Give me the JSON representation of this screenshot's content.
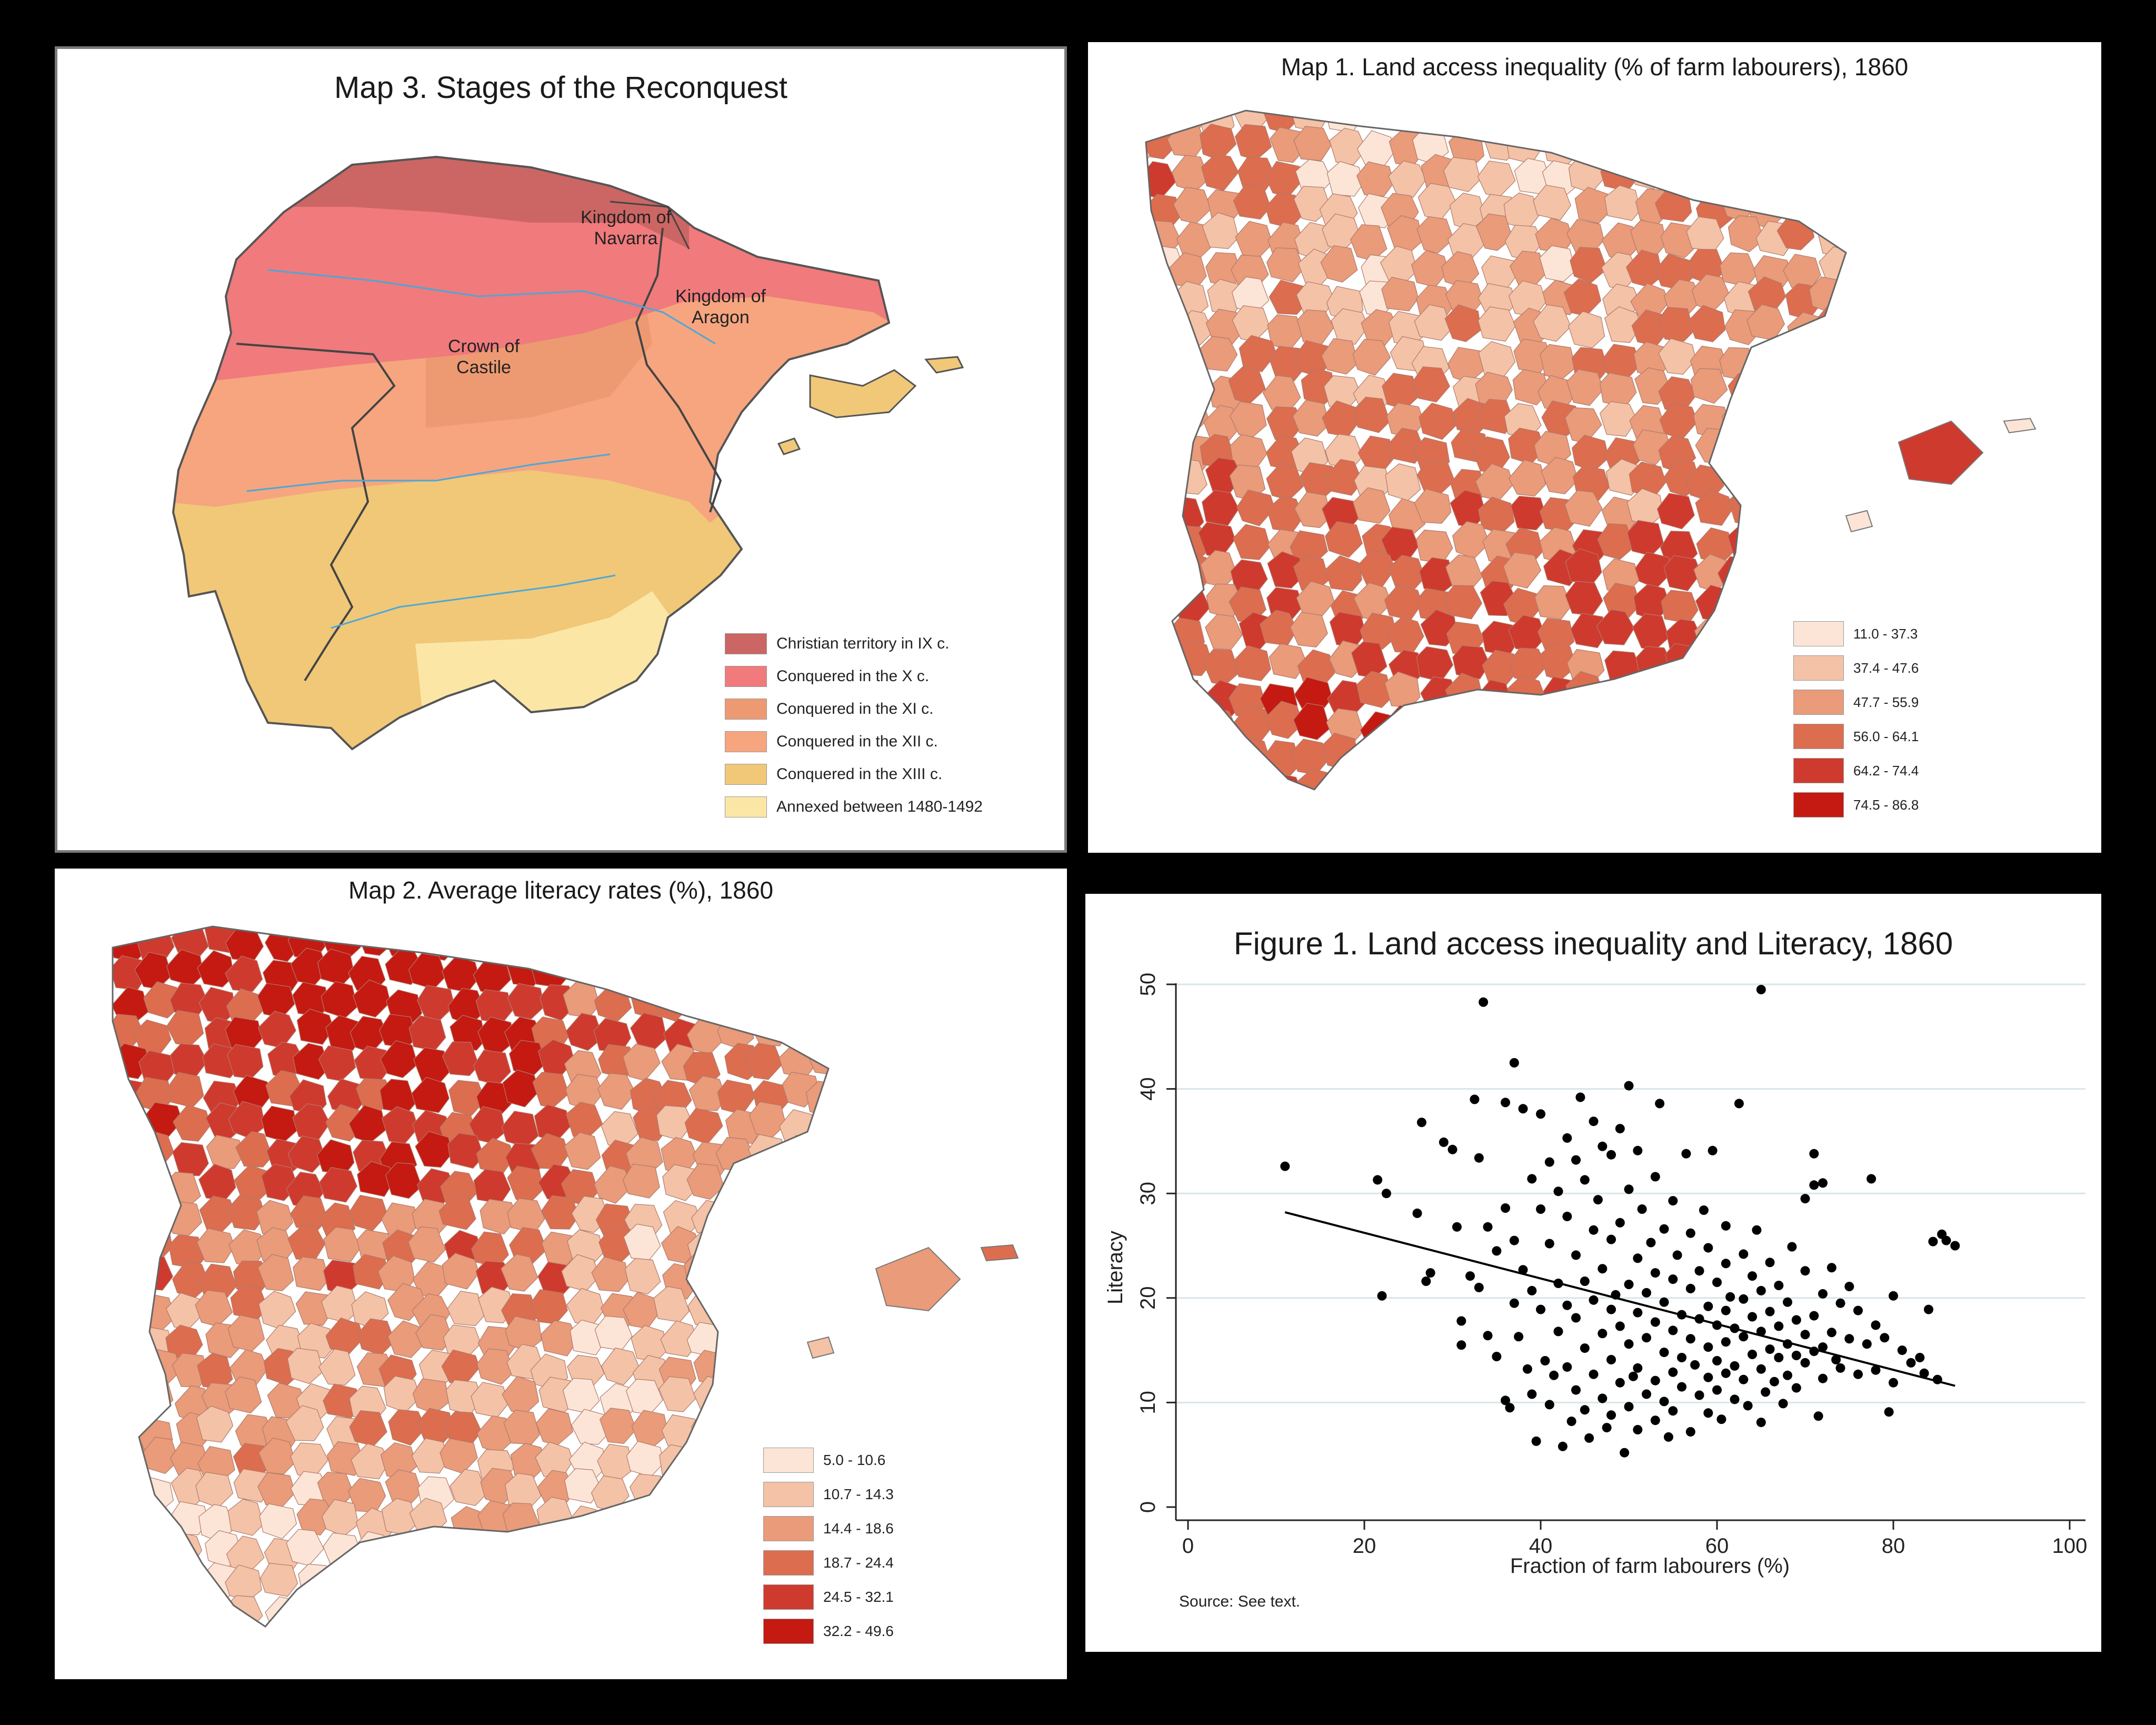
{
  "map3": {
    "title": "Map 3. Stages of the Reconquest",
    "labels": {
      "navarra": "Kingdom of Navarra",
      "aragon": "Kingdom of Aragon",
      "castile": "Crown of Castile"
    },
    "legend": [
      {
        "label": "Christian territory in IX c.",
        "color": "#cc6664"
      },
      {
        "label": "Conquered in the X c.",
        "color": "#f07a7c"
      },
      {
        "label": "Conquered in the XI c.",
        "color": "#ed9a72"
      },
      {
        "label": "Conquered in the XII c.",
        "color": "#f6a57f"
      },
      {
        "label": "Conquered in the XIII c.",
        "color": "#f0c878"
      },
      {
        "label": "Annexed between 1480-1492",
        "color": "#fbe6a6"
      }
    ]
  },
  "map1": {
    "title": "Map 1. Land access inequality (% of farm labourers), 1860",
    "legend": [
      {
        "label": "11.0 - 37.3",
        "color": "#fce5d6"
      },
      {
        "label": "37.4 - 47.6",
        "color": "#f4c2a6"
      },
      {
        "label": "47.7 - 55.9",
        "color": "#e99b7a"
      },
      {
        "label": "56.0 - 64.1",
        "color": "#dc6d4f"
      },
      {
        "label": "64.2 - 74.4",
        "color": "#cf3a2e"
      },
      {
        "label": "74.5 - 86.8",
        "color": "#c41a12"
      }
    ]
  },
  "map2": {
    "title": "Map 2. Average literacy rates (%), 1860",
    "legend": [
      {
        "label": "5.0 - 10.6",
        "color": "#fce5d6"
      },
      {
        "label": "10.7 - 14.3",
        "color": "#f4c2a6"
      },
      {
        "label": "14.4 - 18.6",
        "color": "#e99b7a"
      },
      {
        "label": "18.7 - 24.4",
        "color": "#dc6d4f"
      },
      {
        "label": "24.5 - 32.1",
        "color": "#cf3a2e"
      },
      {
        "label": "32.2 - 49.6",
        "color": "#c41a12"
      }
    ]
  },
  "figure1": {
    "source": "Source: See text.",
    "chart_data": {
      "type": "scatter",
      "title": "Figure 1. Land access inequality and Literacy, 1860",
      "xlabel": "Fraction of farm labourers (%)",
      "ylabel": "Literacy",
      "xlim": [
        0,
        100
      ],
      "ylim": [
        0,
        50
      ],
      "xticks": [
        "0",
        "20",
        "40",
        "60",
        "80",
        "100"
      ],
      "yticks": [
        "0",
        "10",
        "20",
        "30",
        "40",
        "50"
      ],
      "grid": "horizontal",
      "fit_line": {
        "x": [
          11,
          87
        ],
        "y": [
          28.2,
          11.6
        ]
      },
      "points": [
        [
          11,
          32.6
        ],
        [
          21.5,
          31.3
        ],
        [
          22,
          20.2
        ],
        [
          22.5,
          30
        ],
        [
          26,
          28.1
        ],
        [
          26.5,
          36.8
        ],
        [
          27,
          21.6
        ],
        [
          27.5,
          22.4
        ],
        [
          29,
          34.9
        ],
        [
          30,
          34.2
        ],
        [
          30.5,
          26.8
        ],
        [
          31,
          17.8
        ],
        [
          31,
          15.5
        ],
        [
          32,
          22.1
        ],
        [
          32.5,
          39
        ],
        [
          33,
          33.4
        ],
        [
          33,
          21
        ],
        [
          33.5,
          48.3
        ],
        [
          34,
          26.8
        ],
        [
          34,
          16.4
        ],
        [
          35,
          24.5
        ],
        [
          35,
          14.4
        ],
        [
          36,
          38.7
        ],
        [
          36,
          28.6
        ],
        [
          36,
          10.2
        ],
        [
          36.5,
          9.5
        ],
        [
          37,
          42.5
        ],
        [
          37,
          25.5
        ],
        [
          37,
          19.5
        ],
        [
          37.5,
          16.3
        ],
        [
          38,
          38.1
        ],
        [
          38,
          22.7
        ],
        [
          38.5,
          13.2
        ],
        [
          39,
          31.4
        ],
        [
          39,
          20.7
        ],
        [
          39,
          10.8
        ],
        [
          39.5,
          6.3
        ],
        [
          40,
          37.6
        ],
        [
          40,
          28.5
        ],
        [
          40,
          18.9
        ],
        [
          40.5,
          14
        ],
        [
          41,
          33
        ],
        [
          41,
          25.2
        ],
        [
          41,
          9.8
        ],
        [
          41.5,
          12.6
        ],
        [
          42,
          30.2
        ],
        [
          42,
          21.4
        ],
        [
          42,
          16.8
        ],
        [
          42.5,
          5.8
        ],
        [
          43,
          35.3
        ],
        [
          43,
          27.8
        ],
        [
          43,
          19.3
        ],
        [
          43,
          13.4
        ],
        [
          43.5,
          8.2
        ],
        [
          44,
          33.2
        ],
        [
          44,
          24.1
        ],
        [
          44,
          18.1
        ],
        [
          44,
          11.2
        ],
        [
          44.5,
          39.2
        ],
        [
          45,
          31.3
        ],
        [
          45,
          21.6
        ],
        [
          45,
          15.2
        ],
        [
          45,
          9.3
        ],
        [
          45.5,
          6.6
        ],
        [
          46,
          36.9
        ],
        [
          46,
          26.5
        ],
        [
          46,
          19.8
        ],
        [
          46,
          12.7
        ],
        [
          46.5,
          29.4
        ],
        [
          47,
          34.5
        ],
        [
          47,
          22.8
        ],
        [
          47,
          16.6
        ],
        [
          47,
          10.4
        ],
        [
          47.5,
          7.6
        ],
        [
          48,
          33.7
        ],
        [
          48,
          25.6
        ],
        [
          48,
          18.9
        ],
        [
          48,
          14.1
        ],
        [
          48,
          8.8
        ],
        [
          48.5,
          20.3
        ],
        [
          49,
          36.2
        ],
        [
          49,
          27.2
        ],
        [
          49,
          17.3
        ],
        [
          49,
          11.9
        ],
        [
          49.5,
          5.2
        ],
        [
          50,
          40.3
        ],
        [
          50,
          30.4
        ],
        [
          50,
          21.3
        ],
        [
          50,
          15.6
        ],
        [
          50,
          9.6
        ],
        [
          50.5,
          12.5
        ],
        [
          51,
          34.1
        ],
        [
          51,
          23.8
        ],
        [
          51,
          18.6
        ],
        [
          51,
          13.3
        ],
        [
          51,
          7.4
        ],
        [
          51.5,
          28.5
        ],
        [
          52,
          20.5
        ],
        [
          52,
          16.2
        ],
        [
          52,
          10.8
        ],
        [
          52.5,
          25.3
        ],
        [
          53,
          31.6
        ],
        [
          53,
          22.4
        ],
        [
          53,
          17.7
        ],
        [
          53,
          12.1
        ],
        [
          53,
          8.3
        ],
        [
          53.5,
          38.6
        ],
        [
          54,
          26.6
        ],
        [
          54,
          19.6
        ],
        [
          54,
          14.8
        ],
        [
          54,
          10.1
        ],
        [
          54.5,
          6.7
        ],
        [
          55,
          29.3
        ],
        [
          55,
          21.8
        ],
        [
          55,
          16.9
        ],
        [
          55,
          12.9
        ],
        [
          55,
          9.2
        ],
        [
          55.5,
          24.1
        ],
        [
          56,
          18.4
        ],
        [
          56,
          14.3
        ],
        [
          56,
          11.5
        ],
        [
          56.5,
          33.8
        ],
        [
          57,
          26.2
        ],
        [
          57,
          20.9
        ],
        [
          57,
          16.1
        ],
        [
          57,
          7.2
        ],
        [
          57.5,
          13.6
        ],
        [
          58,
          22.6
        ],
        [
          58,
          18
        ],
        [
          58,
          10.7
        ],
        [
          58.5,
          28.4
        ],
        [
          59,
          24.8
        ],
        [
          59,
          19.2
        ],
        [
          59,
          15.3
        ],
        [
          59,
          12.4
        ],
        [
          59,
          9
        ],
        [
          59.5,
          34.1
        ],
        [
          60,
          21.5
        ],
        [
          60,
          17.4
        ],
        [
          60,
          14
        ],
        [
          60,
          11.2
        ],
        [
          60.5,
          8.4
        ],
        [
          61,
          26.9
        ],
        [
          61,
          23.3
        ],
        [
          61,
          18.8
        ],
        [
          61,
          15.8
        ],
        [
          61,
          12.8
        ],
        [
          61.5,
          20.1
        ],
        [
          62,
          17.1
        ],
        [
          62,
          13.5
        ],
        [
          62,
          10.3
        ],
        [
          62.5,
          38.6
        ],
        [
          63,
          24.2
        ],
        [
          63,
          19.9
        ],
        [
          63,
          16.3
        ],
        [
          63,
          12.2
        ],
        [
          63.5,
          9.7
        ],
        [
          64,
          22.1
        ],
        [
          64,
          18.2
        ],
        [
          64,
          14.6
        ],
        [
          64.5,
          26.5
        ],
        [
          65,
          49.5
        ],
        [
          65,
          20.7
        ],
        [
          65,
          16.8
        ],
        [
          65,
          13.2
        ],
        [
          65,
          8.1
        ],
        [
          65.5,
          11
        ],
        [
          66,
          23.4
        ],
        [
          66,
          18.7
        ],
        [
          66,
          15.1
        ],
        [
          66.5,
          12
        ],
        [
          67,
          21.2
        ],
        [
          67,
          17.3
        ],
        [
          67,
          14.3
        ],
        [
          67.5,
          9.9
        ],
        [
          68,
          19.6
        ],
        [
          68,
          15.6
        ],
        [
          68,
          12.6
        ],
        [
          68.5,
          24.9
        ],
        [
          69,
          17.9
        ],
        [
          69,
          14.5
        ],
        [
          69,
          11.4
        ],
        [
          70,
          29.5
        ],
        [
          70,
          22.6
        ],
        [
          70,
          16.5
        ],
        [
          70,
          13.8
        ],
        [
          71,
          30.8
        ],
        [
          71,
          33.8
        ],
        [
          71,
          18.3
        ],
        [
          71,
          14.9
        ],
        [
          71.5,
          8.7
        ],
        [
          72,
          31
        ],
        [
          72,
          20.4
        ],
        [
          72,
          15.3
        ],
        [
          72,
          12.3
        ],
        [
          73,
          22.9
        ],
        [
          73,
          16.7
        ],
        [
          73.5,
          14.1
        ],
        [
          74,
          19.5
        ],
        [
          74,
          13.3
        ],
        [
          75,
          21.1
        ],
        [
          75,
          16.1
        ],
        [
          76,
          18.8
        ],
        [
          76,
          12.7
        ],
        [
          77,
          15.6
        ],
        [
          77.5,
          31.4
        ],
        [
          78,
          17.4
        ],
        [
          78,
          13.1
        ],
        [
          79,
          16.2
        ],
        [
          79.5,
          9.1
        ],
        [
          80,
          20.2
        ],
        [
          80,
          11.9
        ],
        [
          81,
          15
        ],
        [
          82,
          13.8
        ],
        [
          83,
          14.3
        ],
        [
          83.5,
          12.8
        ],
        [
          84,
          18.9
        ],
        [
          84.5,
          25.4
        ],
        [
          85,
          12.2
        ],
        [
          85.5,
          26.1
        ],
        [
          86,
          25.5
        ],
        [
          87,
          25
        ]
      ]
    }
  }
}
